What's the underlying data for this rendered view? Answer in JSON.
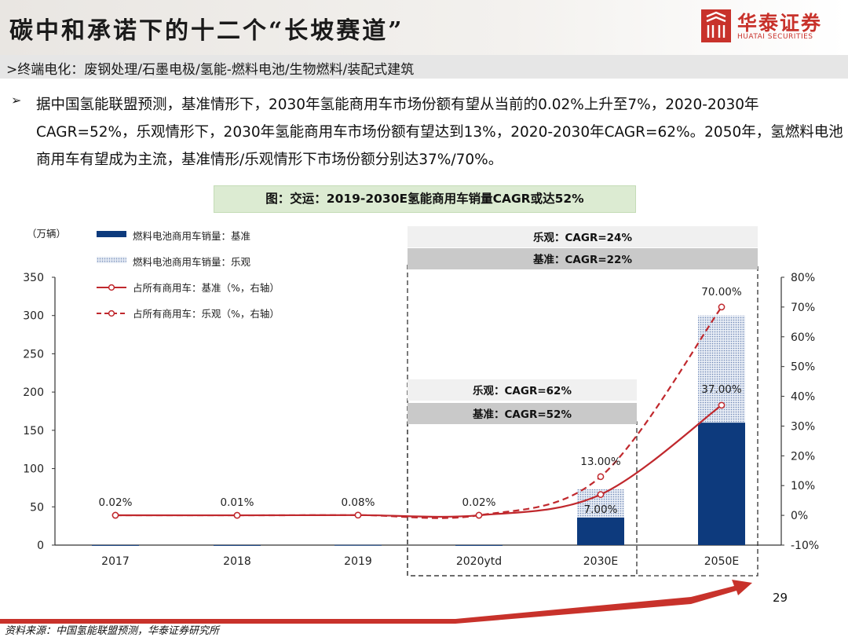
{
  "header": {
    "title": "碳中和承诺下的十二个“长坡赛道”",
    "logo_cn": "华泰证券",
    "logo_en": "HUATAI SECURITIES"
  },
  "subheader": ">终端电化：废钢处理/石墨电极/氢能-燃料电池/生物燃料/装配式建筑",
  "bullet": {
    "symbol": "➢",
    "text": "据中国氢能联盟预测，基准情形下，2030年氢能商用车市场份额有望从当前的0.02%上升至7%，2020-2030年CAGR=52%，乐观情形下，2030年氢能商用车市场份额有望达到13%，2020-2030年CAGR=62%。2050年，氢燃料电池商用车有望成为主流，基准情形/乐观情形下市场份额分别达37%/70%。"
  },
  "chart_title": "图：交运：2019-2030E氢能商用车销量CAGR或达52%",
  "chart_data": {
    "type": "bar",
    "categories": [
      "2017",
      "2018",
      "2019",
      "2020ytd",
      "2030E",
      "2050E"
    ],
    "unit_label": "（万辆）",
    "ylim": [
      0,
      350
    ],
    "yticks": [
      0,
      50,
      100,
      150,
      200,
      250,
      300,
      350
    ],
    "y2lim": [
      -10,
      80
    ],
    "y2ticks": [
      "-10%",
      "0%",
      "10%",
      "20%",
      "30%",
      "40%",
      "50%",
      "60%",
      "70%",
      "80%"
    ],
    "series": [
      {
        "name": "燃料电池商用车销量：基准",
        "kind": "bar",
        "color": "#0d3a7d",
        "values": [
          0.1,
          0.1,
          0.3,
          0.1,
          36,
          160
        ]
      },
      {
        "name": "燃料电池商用车销量：乐观",
        "kind": "bar-pattern",
        "color": "#9fb3d4",
        "values": [
          0.1,
          0.1,
          0.3,
          0.1,
          73,
          300
        ]
      },
      {
        "name": "占所有商用车：基准（%，右轴）",
        "kind": "line",
        "axis": "right",
        "color": "#c0282d",
        "values": [
          0.02,
          0.01,
          0.08,
          0.02,
          7.0,
          37.0
        ]
      },
      {
        "name": "占所有商用车：乐观（%，右轴）",
        "kind": "dashed-line",
        "axis": "right",
        "color": "#c0282d",
        "values": [
          0.02,
          0.01,
          0.08,
          0.02,
          13.0,
          70.0
        ]
      }
    ],
    "data_labels": {
      "common": [
        "0.02%",
        "0.01%",
        "0.08%",
        "0.02%"
      ],
      "base_2030": "7.00%",
      "opt_2030": "13.00%",
      "base_2050": "37.00%",
      "opt_2050": "70.00%"
    },
    "cagr_boxes": {
      "opt_2050": "乐观：CAGR=24%",
      "base_2050": "基准：CAGR=22%",
      "opt_2030": "乐观：CAGR=62%",
      "base_2030": "基准：CAGR=52%"
    }
  },
  "page_number": "29",
  "source": "资料来源：中国氢能联盟预测，华泰证券研究所"
}
